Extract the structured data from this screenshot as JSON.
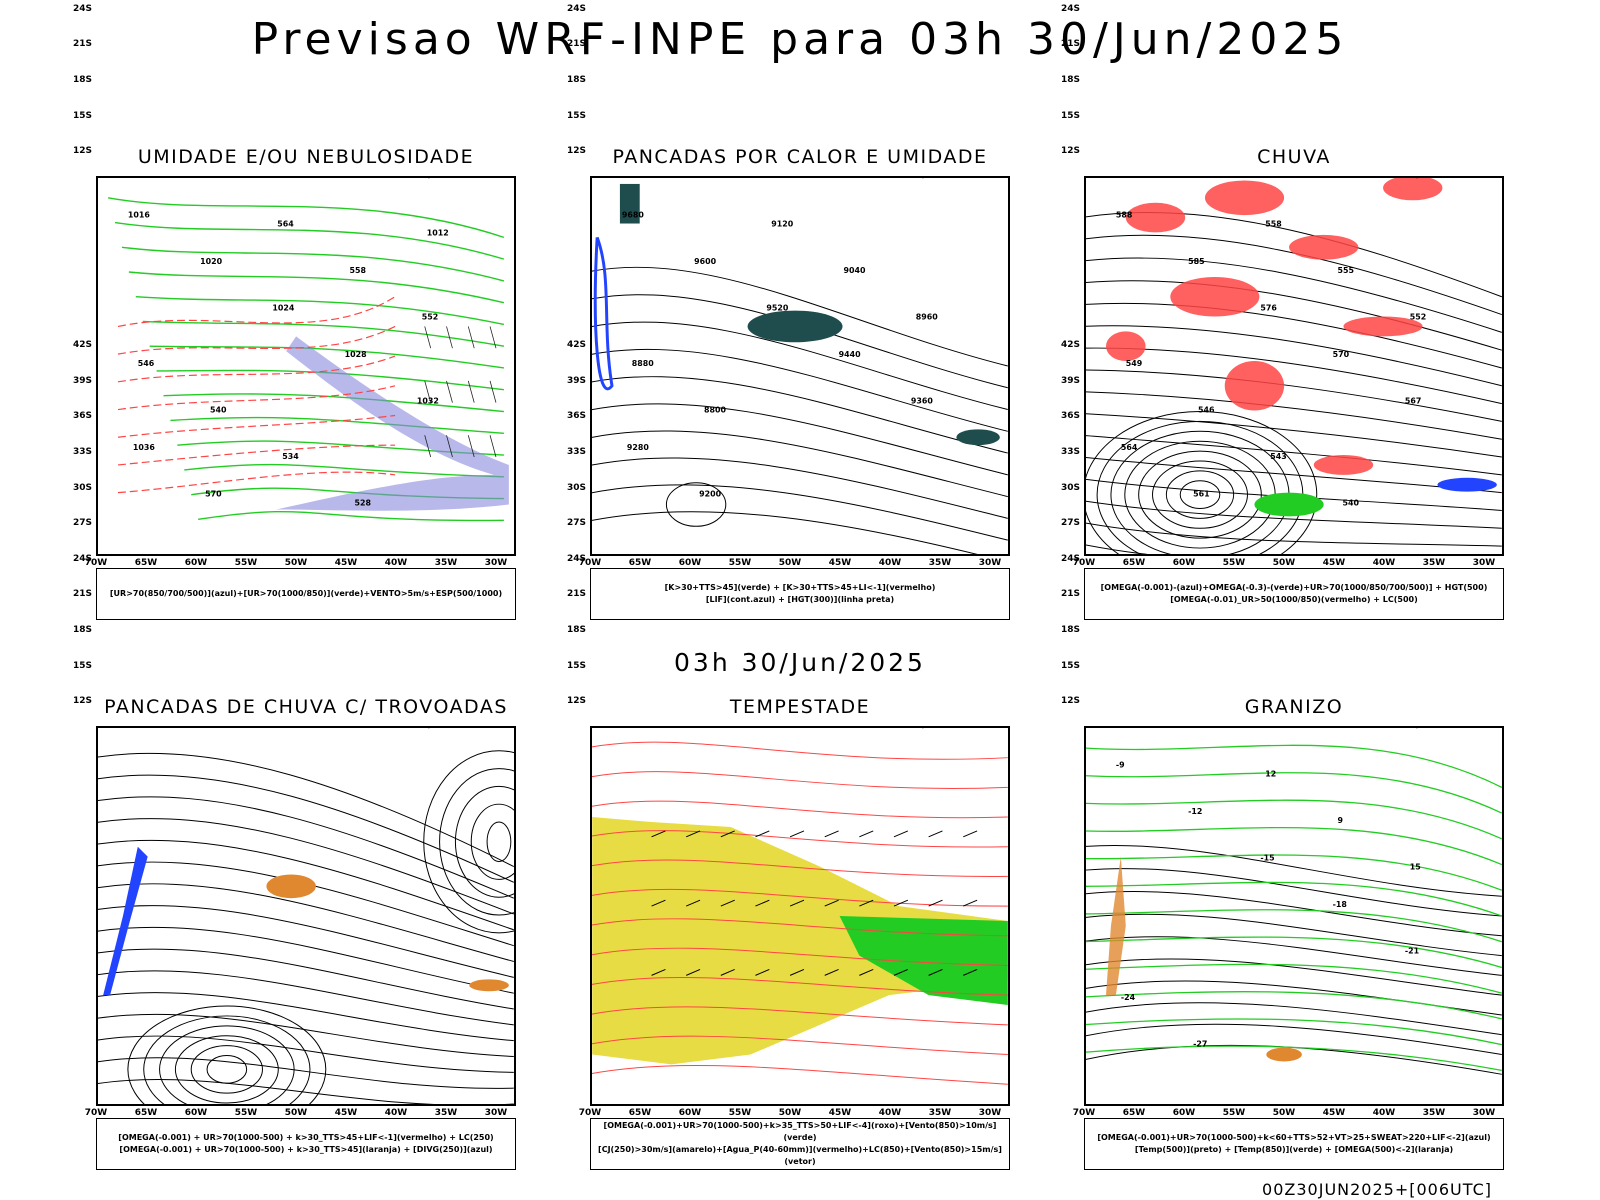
{
  "header": {
    "title": "Previsao WRF-INPE  para 03h 30/Jun/2025"
  },
  "middle_label": "03h 30/Jun/2025",
  "footer_label": "00Z30JUN2025+[006UTC]",
  "axes": {
    "latitudes": [
      "12S",
      "15S",
      "18S",
      "21S",
      "24S",
      "27S",
      "30S",
      "33S",
      "36S",
      "39S",
      "42S"
    ],
    "longitudes": [
      "70W",
      "65W",
      "60W",
      "55W",
      "50W",
      "45W",
      "40W",
      "35W",
      "30W"
    ]
  },
  "colors": {
    "green": "#22cc22",
    "red": "#ff4444",
    "blue": "#2244ff",
    "lavender": "#8888dd",
    "dark_teal": "#1f4d4d",
    "orange": "#e08830",
    "yellow": "#e6d830",
    "land": "#000000"
  },
  "panels": [
    {
      "id": "umidade",
      "title": "UMIDADE E/OU NEBULOSIDADE",
      "legend": [
        "[UR>70(850/700/500)](azul)+[UR>70(1000/850)](verde)+VENTO>5m/s+ESP(500/1000)"
      ],
      "labels": [
        "1016",
        "1020",
        "1024",
        "1028",
        "1032",
        "1036",
        "570",
        "564",
        "558",
        "552",
        "546",
        "540",
        "534",
        "528",
        "1012"
      ]
    },
    {
      "id": "pancadas-calor",
      "title": "PANCADAS POR CALOR E UMIDADE",
      "legend": [
        "[K>30+TTS>45](verde) + [K>30+TTS>45+LI<-1](vermelho)",
        "[LIF](cont.azul) + [HGT(300)](linha preta)"
      ],
      "labels": [
        "9680",
        "9600",
        "9520",
        "9440",
        "9360",
        "9280",
        "9200",
        "9120",
        "9040",
        "8960",
        "8880",
        "8800"
      ]
    },
    {
      "id": "chuva",
      "title": "CHUVA",
      "legend": [
        "[OMEGA(-0.001)-(azul)+OMEGA(-0.3)-(verde)+UR>70(1000/850/700/500)] + HGT(500)",
        "[OMEGA(-0.01)_UR>50(1000/850)(vermelho) + LC(500)"
      ],
      "labels": [
        "588",
        "585",
        "576",
        "570",
        "567",
        "564",
        "561",
        "558",
        "555",
        "552",
        "549",
        "546",
        "543",
        "540"
      ]
    },
    {
      "id": "trovoadas",
      "title": "PANCADAS DE CHUVA C/ TROVOADAS",
      "legend": [
        "[OMEGA(-0.001) + UR>70(1000-500) + k>30_TTS>45+LIF<-1](vermelho) + LC(250)",
        "[OMEGA(-0.001) + UR>70(1000-500) + k>30_TTS>45](laranja) + [DIVG(250)](azul)"
      ],
      "labels": []
    },
    {
      "id": "tempestade",
      "title": "TEMPESTADE",
      "legend": [
        "[OMEGA(-0.001)+UR>70(1000-500)+k>35_TTS>50+LIF<-4](roxo)+[Vento(850)>10m/s](verde)",
        "[CJ(250)>30m/s](amarelo)+[Agua_P(40-60mm)](vermelho)+LC(850)+[Vento(850)>15m/s](vetor)"
      ],
      "labels": []
    },
    {
      "id": "granizo",
      "title": "GRANIZO",
      "legend": [
        "[OMEGA(-0.001)+UR>70(1000-500)+k<60+TTS>52+VT>25+SWEAT>220+LIF<-2](azul)",
        "[Temp(500)](preto) + [Temp(850)](verde) + [OMEGA(500)<-2](laranja)"
      ],
      "labels": [
        "-9",
        "-12",
        "-15",
        "-18",
        "-21",
        "-24",
        "-27",
        "12",
        "9",
        "15"
      ]
    }
  ]
}
